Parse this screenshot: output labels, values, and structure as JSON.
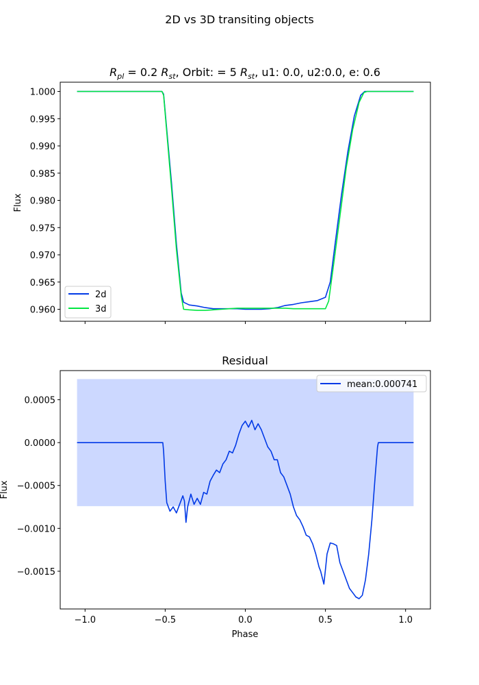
{
  "figure": {
    "suptitle": "2D vs 3D transiting objects"
  },
  "chart_data": [
    {
      "type": "line",
      "title_parts": {
        "r_main": "R",
        "r_pl_sub": "pl",
        "eq1": " = 0.2 ",
        "r_st_sub": "st",
        "orbit": ", Orbit: = 5 ",
        "r2_st_sub": "st",
        "rest": ", u1: 0.0, u2:0.0, e: 0.6"
      },
      "xlabel": "",
      "ylabel": "Flux",
      "xlim": [
        -1.155,
        1.155
      ],
      "ylim": [
        0.9578,
        1.0017
      ],
      "yticks": [
        0.96,
        0.965,
        0.97,
        0.975,
        0.98,
        0.985,
        0.99,
        0.995,
        1.0
      ],
      "ytick_labels": [
        "0.960",
        "0.965",
        "0.970",
        "0.975",
        "0.980",
        "0.985",
        "0.990",
        "0.995",
        "1.000"
      ],
      "xticks": [
        -1.0,
        -0.5,
        0.0,
        0.5,
        1.0
      ],
      "legend_position": "lower-left",
      "grid": false,
      "series": [
        {
          "name": "2d",
          "color": "#0039e6",
          "points": [
            [
              -1.05,
              1.0
            ],
            [
              -0.52,
              1.0
            ],
            [
              -0.51,
              0.9995
            ],
            [
              -0.49,
              0.993
            ],
            [
              -0.46,
              0.983
            ],
            [
              -0.43,
              0.972
            ],
            [
              -0.4,
              0.963
            ],
            [
              -0.385,
              0.9613
            ],
            [
              -0.35,
              0.9608
            ],
            [
              -0.3,
              0.9606
            ],
            [
              -0.25,
              0.9603
            ],
            [
              -0.2,
              0.9601
            ],
            [
              -0.15,
              0.9601
            ],
            [
              -0.1,
              0.9601
            ],
            [
              -0.05,
              0.9601
            ],
            [
              0.0,
              0.96
            ],
            [
              0.05,
              0.96
            ],
            [
              0.1,
              0.96
            ],
            [
              0.15,
              0.9601
            ],
            [
              0.2,
              0.9603
            ],
            [
              0.25,
              0.9607
            ],
            [
              0.3,
              0.9609
            ],
            [
              0.35,
              0.9612
            ],
            [
              0.4,
              0.9614
            ],
            [
              0.45,
              0.9616
            ],
            [
              0.5,
              0.9622
            ],
            [
              0.53,
              0.965
            ],
            [
              0.56,
              0.972
            ],
            [
              0.6,
              0.981
            ],
            [
              0.64,
              0.989
            ],
            [
              0.68,
              0.9955
            ],
            [
              0.72,
              0.9993
            ],
            [
              0.745,
              1.0
            ],
            [
              1.05,
              1.0
            ]
          ]
        },
        {
          "name": "3d",
          "color": "#00e640",
          "points": [
            [
              -1.05,
              1.0
            ],
            [
              -0.52,
              1.0
            ],
            [
              -0.51,
              0.9993
            ],
            [
              -0.49,
              0.9925
            ],
            [
              -0.46,
              0.982
            ],
            [
              -0.43,
              0.971
            ],
            [
              -0.4,
              0.9625
            ],
            [
              -0.385,
              0.96
            ],
            [
              -0.35,
              0.9599
            ],
            [
              -0.3,
              0.9598
            ],
            [
              -0.25,
              0.9598
            ],
            [
              -0.2,
              0.9599
            ],
            [
              -0.15,
              0.96
            ],
            [
              -0.1,
              0.9601
            ],
            [
              -0.05,
              0.9602
            ],
            [
              0.0,
              0.9602
            ],
            [
              0.05,
              0.9602
            ],
            [
              0.1,
              0.9602
            ],
            [
              0.15,
              0.9602
            ],
            [
              0.2,
              0.9602
            ],
            [
              0.25,
              0.9602
            ],
            [
              0.3,
              0.9601
            ],
            [
              0.35,
              0.9601
            ],
            [
              0.4,
              0.9601
            ],
            [
              0.45,
              0.9601
            ],
            [
              0.5,
              0.9601
            ],
            [
              0.52,
              0.9615
            ],
            [
              0.55,
              0.968
            ],
            [
              0.59,
              0.977
            ],
            [
              0.63,
              0.986
            ],
            [
              0.67,
              0.993
            ],
            [
              0.71,
              0.998
            ],
            [
              0.74,
              0.9998
            ],
            [
              0.76,
              1.0
            ],
            [
              1.05,
              1.0
            ]
          ]
        }
      ]
    },
    {
      "type": "line",
      "title": "Residual",
      "xlabel": "Phase",
      "ylabel": "Flux",
      "xlim": [
        -1.155,
        1.155
      ],
      "ylim": [
        -0.00194,
        0.00084
      ],
      "yticks": [
        -0.0015,
        -0.001,
        -0.0005,
        0.0,
        0.0005
      ],
      "ytick_labels": [
        "−0.0015",
        "−0.0010",
        "−0.0005",
        "0.0000",
        "0.0005"
      ],
      "xticks": [
        -1.0,
        -0.5,
        0.0,
        0.5,
        1.0
      ],
      "xtick_labels": [
        "−1.0",
        "−0.5",
        "0.0",
        "0.5",
        "1.0"
      ],
      "legend_position": "upper-right",
      "grid": false,
      "band": {
        "xrange": [
          -1.05,
          1.05
        ],
        "yrange": [
          -0.000741,
          0.000741
        ],
        "color": "#ccd8ff"
      },
      "series": [
        {
          "name": "mean:0.000741",
          "color": "#0039e6",
          "points": [
            [
              -1.05,
              0.0
            ],
            [
              -0.515,
              0.0
            ],
            [
              -0.51,
              -0.0001
            ],
            [
              -0.5,
              -0.00045
            ],
            [
              -0.49,
              -0.0007
            ],
            [
              -0.47,
              -0.0008
            ],
            [
              -0.45,
              -0.00075
            ],
            [
              -0.43,
              -0.00082
            ],
            [
              -0.41,
              -0.00072
            ],
            [
              -0.39,
              -0.00062
            ],
            [
              -0.38,
              -0.00068
            ],
            [
              -0.37,
              -0.00093
            ],
            [
              -0.36,
              -0.00075
            ],
            [
              -0.34,
              -0.0006
            ],
            [
              -0.32,
              -0.00072
            ],
            [
              -0.3,
              -0.00065
            ],
            [
              -0.28,
              -0.00072
            ],
            [
              -0.26,
              -0.00058
            ],
            [
              -0.24,
              -0.0006
            ],
            [
              -0.22,
              -0.00045
            ],
            [
              -0.2,
              -0.00038
            ],
            [
              -0.18,
              -0.00032
            ],
            [
              -0.16,
              -0.00035
            ],
            [
              -0.14,
              -0.00025
            ],
            [
              -0.12,
              -0.0002
            ],
            [
              -0.1,
              -0.0001
            ],
            [
              -0.08,
              -0.00012
            ],
            [
              -0.06,
              -3e-05
            ],
            [
              -0.04,
              0.0001
            ],
            [
              -0.02,
              0.0002
            ],
            [
              0.0,
              0.00025
            ],
            [
              0.02,
              0.00018
            ],
            [
              0.04,
              0.00026
            ],
            [
              0.06,
              0.00015
            ],
            [
              0.08,
              0.00022
            ],
            [
              0.1,
              0.00015
            ],
            [
              0.12,
              5e-05
            ],
            [
              0.14,
              -5e-05
            ],
            [
              0.16,
              -0.0001
            ],
            [
              0.18,
              -0.0002
            ],
            [
              0.2,
              -0.0002
            ],
            [
              0.22,
              -0.00035
            ],
            [
              0.24,
              -0.0004
            ],
            [
              0.26,
              -0.0005
            ],
            [
              0.28,
              -0.0006
            ],
            [
              0.3,
              -0.00075
            ],
            [
              0.32,
              -0.00085
            ],
            [
              0.34,
              -0.0009
            ],
            [
              0.36,
              -0.00098
            ],
            [
              0.38,
              -0.00108
            ],
            [
              0.4,
              -0.0011
            ],
            [
              0.42,
              -0.00118
            ],
            [
              0.44,
              -0.0013
            ],
            [
              0.46,
              -0.00145
            ],
            [
              0.47,
              -0.0015
            ],
            [
              0.49,
              -0.00165
            ],
            [
              0.5,
              -0.00148
            ],
            [
              0.51,
              -0.0013
            ],
            [
              0.53,
              -0.00117
            ],
            [
              0.55,
              -0.00118
            ],
            [
              0.57,
              -0.0012
            ],
            [
              0.59,
              -0.0014
            ],
            [
              0.61,
              -0.0015
            ],
            [
              0.63,
              -0.0016
            ],
            [
              0.65,
              -0.0017
            ],
            [
              0.67,
              -0.00175
            ],
            [
              0.69,
              -0.0018
            ],
            [
              0.71,
              -0.00182
            ],
            [
              0.73,
              -0.00178
            ],
            [
              0.75,
              -0.0016
            ],
            [
              0.77,
              -0.0013
            ],
            [
              0.79,
              -0.0009
            ],
            [
              0.81,
              -0.0004
            ],
            [
              0.825,
              -5e-05
            ],
            [
              0.83,
              0.0
            ],
            [
              1.05,
              0.0
            ]
          ]
        }
      ]
    }
  ]
}
